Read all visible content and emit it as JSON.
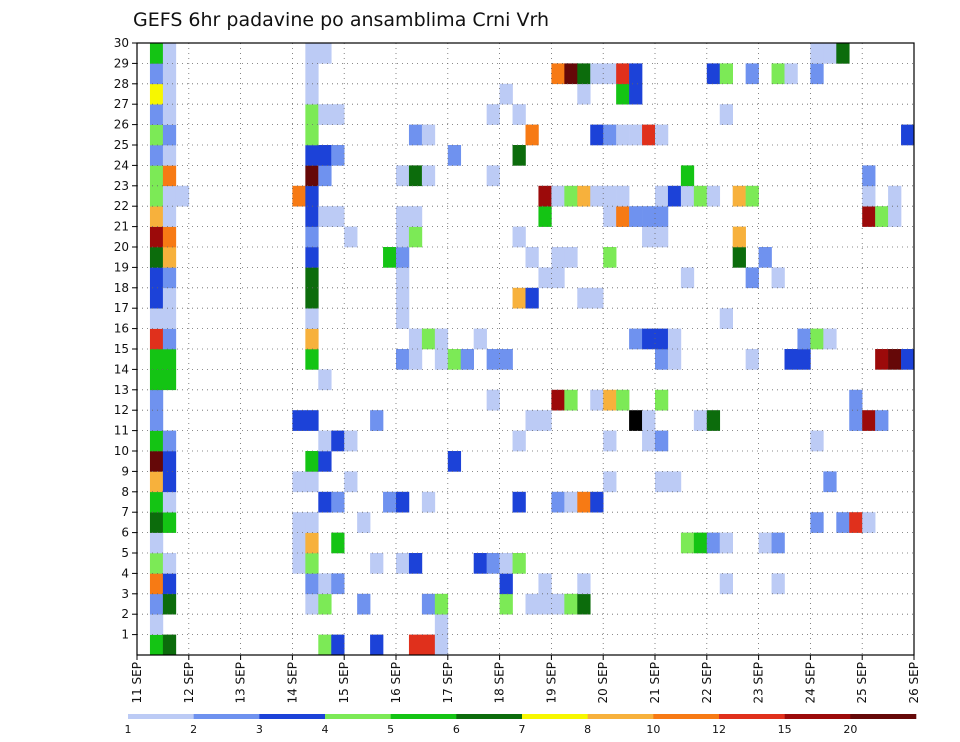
{
  "chart_data": {
    "type": "heatmap",
    "title": "GEFS 6hr padavine po ansamblima Crni Vrh",
    "ylim": [
      0,
      30
    ],
    "xlim": [
      11,
      26
    ],
    "y_ticks": [
      "1",
      "2",
      "3",
      "4",
      "5",
      "6",
      "7",
      "8",
      "9",
      "10",
      "11",
      "12",
      "13",
      "14",
      "15",
      "16",
      "17",
      "18",
      "19",
      "20",
      "21",
      "22",
      "23",
      "24",
      "25",
      "26",
      "27",
      "28",
      "29",
      "30"
    ],
    "x_ticks": [
      "11 SEP",
      "12 SEP",
      "13 SEP",
      "14 SEP",
      "15 SEP",
      "16 SEP",
      "17 SEP",
      "18 SEP",
      "19 SEP",
      "20 SEP",
      "21 SEP",
      "22 SEP",
      "23 SEP",
      "24 SEP",
      "25 SEP",
      "26 SEP"
    ],
    "grid": true,
    "colorbar": {
      "boundaries": [
        "1",
        "2",
        "3",
        "4",
        "5",
        "6",
        "7",
        "8",
        "10",
        "12",
        "15",
        "20"
      ],
      "colors": [
        "#bccbf5",
        "#6f92ef",
        "#1c42d8",
        "#7cea56",
        "#14c414",
        "#0c6c0c",
        "#f7f700",
        "#f7b13c",
        "#f77a14",
        "#e0301c",
        "#9c0a0a",
        "#650808"
      ]
    },
    "column_step_days": 0.25,
    "cells": [
      {
        "m": 1,
        "c": [
          [
            1,
            5
          ],
          [
            2,
            6
          ],
          [
            14,
            4
          ],
          [
            15,
            3
          ],
          [
            18,
            3
          ],
          [
            21,
            10
          ],
          [
            22,
            10
          ],
          [
            23,
            1
          ]
        ]
      },
      {
        "m": 2,
        "c": [
          [
            1,
            1
          ],
          [
            23,
            1
          ]
        ]
      },
      {
        "m": 3,
        "c": [
          [
            1,
            2
          ],
          [
            2,
            6
          ],
          [
            13,
            1
          ],
          [
            14,
            4
          ],
          [
            17,
            2
          ],
          [
            22,
            2
          ],
          [
            23,
            4
          ],
          [
            28,
            4
          ],
          [
            30,
            1
          ],
          [
            31,
            1
          ],
          [
            32,
            1
          ],
          [
            33,
            4
          ],
          [
            34,
            6
          ]
        ]
      },
      {
        "m": 4,
        "c": [
          [
            1,
            9
          ],
          [
            2,
            3
          ],
          [
            13,
            2
          ],
          [
            14,
            1
          ],
          [
            15,
            2
          ],
          [
            28,
            3
          ],
          [
            31,
            1
          ],
          [
            34,
            1
          ],
          [
            45,
            1
          ],
          [
            49,
            1
          ]
        ]
      },
      {
        "m": 5,
        "c": [
          [
            1,
            4
          ],
          [
            2,
            1
          ],
          [
            12,
            1
          ],
          [
            13,
            4
          ],
          [
            18,
            1
          ],
          [
            20,
            1
          ],
          [
            21,
            3
          ],
          [
            26,
            3
          ],
          [
            27,
            2
          ],
          [
            28,
            1
          ],
          [
            29,
            4
          ]
        ]
      },
      {
        "m": 6,
        "c": [
          [
            1,
            1
          ],
          [
            12,
            1
          ],
          [
            13,
            8
          ],
          [
            15,
            5
          ],
          [
            42,
            4
          ],
          [
            43,
            5
          ],
          [
            44,
            2
          ],
          [
            45,
            1
          ],
          [
            48,
            1
          ],
          [
            49,
            2
          ]
        ]
      },
      {
        "m": 7,
        "c": [
          [
            1,
            6
          ],
          [
            2,
            5
          ],
          [
            12,
            1
          ],
          [
            13,
            1
          ],
          [
            17,
            1
          ],
          [
            52,
            2
          ],
          [
            54,
            2
          ],
          [
            55,
            10
          ],
          [
            56,
            1
          ]
        ]
      },
      {
        "m": 8,
        "c": [
          [
            1,
            5
          ],
          [
            2,
            1
          ],
          [
            14,
            3
          ],
          [
            15,
            2
          ],
          [
            19,
            2
          ],
          [
            20,
            3
          ],
          [
            22,
            1
          ],
          [
            29,
            3
          ],
          [
            32,
            2
          ],
          [
            33,
            1
          ],
          [
            34,
            9
          ],
          [
            35,
            3
          ]
        ]
      },
      {
        "m": 9,
        "c": [
          [
            1,
            8
          ],
          [
            2,
            3
          ],
          [
            12,
            1
          ],
          [
            13,
            1
          ],
          [
            16,
            1
          ],
          [
            36,
            1
          ],
          [
            40,
            1
          ],
          [
            41,
            1
          ],
          [
            53,
            2
          ]
        ]
      },
      {
        "m": 10,
        "c": [
          [
            1,
            12
          ],
          [
            2,
            3
          ],
          [
            13,
            5
          ],
          [
            14,
            3
          ],
          [
            24,
            3
          ]
        ]
      },
      {
        "m": 11,
        "c": [
          [
            1,
            5
          ],
          [
            2,
            2
          ],
          [
            14,
            1
          ],
          [
            15,
            3
          ],
          [
            16,
            1
          ],
          [
            29,
            1
          ],
          [
            36,
            1
          ],
          [
            39,
            1
          ],
          [
            40,
            2
          ],
          [
            52,
            1
          ]
        ]
      },
      {
        "m": 12,
        "c": [
          [
            1,
            2
          ],
          [
            12,
            3
          ],
          [
            13,
            3
          ],
          [
            18,
            2
          ],
          [
            30,
            1
          ],
          [
            31,
            1
          ],
          [
            38,
            13
          ],
          [
            39,
            1
          ],
          [
            43,
            1
          ],
          [
            44,
            6
          ],
          [
            55,
            2
          ],
          [
            56,
            11
          ],
          [
            57,
            2
          ]
        ]
      },
      {
        "m": 13,
        "c": [
          [
            1,
            2
          ],
          [
            27,
            1
          ],
          [
            32,
            11
          ],
          [
            33,
            4
          ],
          [
            35,
            1
          ],
          [
            36,
            8
          ],
          [
            37,
            4
          ],
          [
            40,
            4
          ],
          [
            55,
            2
          ]
        ]
      },
      {
        "m": 14,
        "c": [
          [
            1,
            5
          ],
          [
            2,
            5
          ],
          [
            14,
            1
          ]
        ]
      },
      {
        "m": 15,
        "c": [
          [
            1,
            5
          ],
          [
            2,
            5
          ],
          [
            13,
            5
          ],
          [
            20,
            2
          ],
          [
            21,
            1
          ],
          [
            23,
            1
          ],
          [
            24,
            4
          ],
          [
            25,
            2
          ],
          [
            27,
            2
          ],
          [
            28,
            2
          ],
          [
            40,
            2
          ],
          [
            41,
            1
          ],
          [
            47,
            1
          ],
          [
            50,
            3
          ],
          [
            51,
            3
          ],
          [
            57,
            11
          ],
          [
            58,
            12
          ],
          [
            59,
            3
          ]
        ]
      },
      {
        "m": 16,
        "c": [
          [
            1,
            10
          ],
          [
            2,
            2
          ],
          [
            13,
            8
          ],
          [
            21,
            1
          ],
          [
            22,
            4
          ],
          [
            23,
            1
          ],
          [
            26,
            1
          ],
          [
            38,
            2
          ],
          [
            39,
            3
          ],
          [
            40,
            3
          ],
          [
            41,
            1
          ],
          [
            51,
            2
          ],
          [
            52,
            4
          ],
          [
            53,
            1
          ]
        ]
      },
      {
        "m": 17,
        "c": [
          [
            1,
            1
          ],
          [
            2,
            1
          ],
          [
            13,
            1
          ],
          [
            20,
            1
          ],
          [
            45,
            1
          ]
        ]
      },
      {
        "m": 18,
        "c": [
          [
            1,
            3
          ],
          [
            2,
            1
          ],
          [
            13,
            6
          ],
          [
            20,
            1
          ],
          [
            29,
            8
          ],
          [
            30,
            3
          ],
          [
            34,
            1
          ],
          [
            35,
            1
          ]
        ]
      },
      {
        "m": 19,
        "c": [
          [
            1,
            3
          ],
          [
            2,
            2
          ],
          [
            13,
            6
          ],
          [
            20,
            1
          ],
          [
            31,
            1
          ],
          [
            32,
            1
          ],
          [
            42,
            1
          ],
          [
            47,
            2
          ],
          [
            49,
            1
          ]
        ]
      },
      {
        "m": 20,
        "c": [
          [
            1,
            6
          ],
          [
            2,
            8
          ],
          [
            13,
            3
          ],
          [
            19,
            5
          ],
          [
            20,
            2
          ],
          [
            30,
            1
          ],
          [
            32,
            1
          ],
          [
            33,
            1
          ],
          [
            36,
            4
          ],
          [
            46,
            6
          ],
          [
            48,
            2
          ]
        ]
      },
      {
        "m": 21,
        "c": [
          [
            1,
            11
          ],
          [
            2,
            9
          ],
          [
            13,
            2
          ],
          [
            16,
            1
          ],
          [
            20,
            1
          ],
          [
            21,
            4
          ],
          [
            29,
            1
          ],
          [
            39,
            1
          ],
          [
            40,
            1
          ],
          [
            46,
            8
          ]
        ]
      },
      {
        "m": 22,
        "c": [
          [
            1,
            8
          ],
          [
            2,
            1
          ],
          [
            13,
            3
          ],
          [
            14,
            1
          ],
          [
            15,
            1
          ],
          [
            20,
            1
          ],
          [
            21,
            1
          ],
          [
            31,
            5
          ],
          [
            36,
            1
          ],
          [
            37,
            9
          ],
          [
            38,
            2
          ],
          [
            39,
            2
          ],
          [
            40,
            2
          ],
          [
            56,
            11
          ],
          [
            57,
            4
          ],
          [
            58,
            1
          ]
        ]
      },
      {
        "m": 23,
        "c": [
          [
            1,
            4
          ],
          [
            2,
            1
          ],
          [
            3,
            1
          ],
          [
            12,
            9
          ],
          [
            13,
            3
          ],
          [
            31,
            11
          ],
          [
            32,
            1
          ],
          [
            33,
            4
          ],
          [
            34,
            8
          ],
          [
            35,
            1
          ],
          [
            36,
            1
          ],
          [
            37,
            1
          ],
          [
            40,
            1
          ],
          [
            41,
            3
          ],
          [
            42,
            1
          ],
          [
            43,
            4
          ],
          [
            44,
            1
          ],
          [
            46,
            8
          ],
          [
            47,
            4
          ],
          [
            56,
            1
          ],
          [
            58,
            1
          ]
        ]
      },
      {
        "m": 24,
        "c": [
          [
            1,
            4
          ],
          [
            2,
            9
          ],
          [
            13,
            12
          ],
          [
            14,
            2
          ],
          [
            20,
            1
          ],
          [
            21,
            6
          ],
          [
            22,
            1
          ],
          [
            27,
            1
          ],
          [
            42,
            5
          ],
          [
            56,
            2
          ]
        ]
      },
      {
        "m": 25,
        "c": [
          [
            1,
            2
          ],
          [
            2,
            1
          ],
          [
            13,
            3
          ],
          [
            14,
            3
          ],
          [
            15,
            2
          ],
          [
            24,
            2
          ],
          [
            29,
            6
          ]
        ]
      },
      {
        "m": 26,
        "c": [
          [
            1,
            4
          ],
          [
            2,
            2
          ],
          [
            13,
            4
          ],
          [
            21,
            2
          ],
          [
            22,
            1
          ],
          [
            30,
            9
          ],
          [
            35,
            3
          ],
          [
            36,
            2
          ],
          [
            37,
            1
          ],
          [
            38,
            1
          ],
          [
            39,
            10
          ],
          [
            40,
            1
          ],
          [
            59,
            3
          ]
        ]
      },
      {
        "m": 27,
        "c": [
          [
            1,
            2
          ],
          [
            2,
            1
          ],
          [
            13,
            4
          ],
          [
            14,
            1
          ],
          [
            15,
            1
          ],
          [
            27,
            1
          ],
          [
            29,
            1
          ],
          [
            45,
            1
          ]
        ]
      },
      {
        "m": 28,
        "c": [
          [
            1,
            7
          ],
          [
            2,
            1
          ],
          [
            13,
            1
          ],
          [
            28,
            1
          ],
          [
            34,
            1
          ],
          [
            37,
            5
          ],
          [
            38,
            3
          ]
        ]
      },
      {
        "m": 29,
        "c": [
          [
            1,
            2
          ],
          [
            2,
            1
          ],
          [
            13,
            1
          ],
          [
            32,
            9
          ],
          [
            33,
            12
          ],
          [
            34,
            6
          ],
          [
            35,
            1
          ],
          [
            36,
            1
          ],
          [
            37,
            10
          ],
          [
            38,
            3
          ],
          [
            44,
            3
          ],
          [
            45,
            4
          ],
          [
            47,
            2
          ],
          [
            49,
            4
          ],
          [
            50,
            1
          ],
          [
            52,
            2
          ]
        ]
      },
      {
        "m": 30,
        "c": [
          [
            1,
            5
          ],
          [
            2,
            1
          ],
          [
            13,
            1
          ],
          [
            14,
            1
          ],
          [
            52,
            1
          ],
          [
            53,
            1
          ],
          [
            54,
            6
          ]
        ]
      }
    ]
  }
}
